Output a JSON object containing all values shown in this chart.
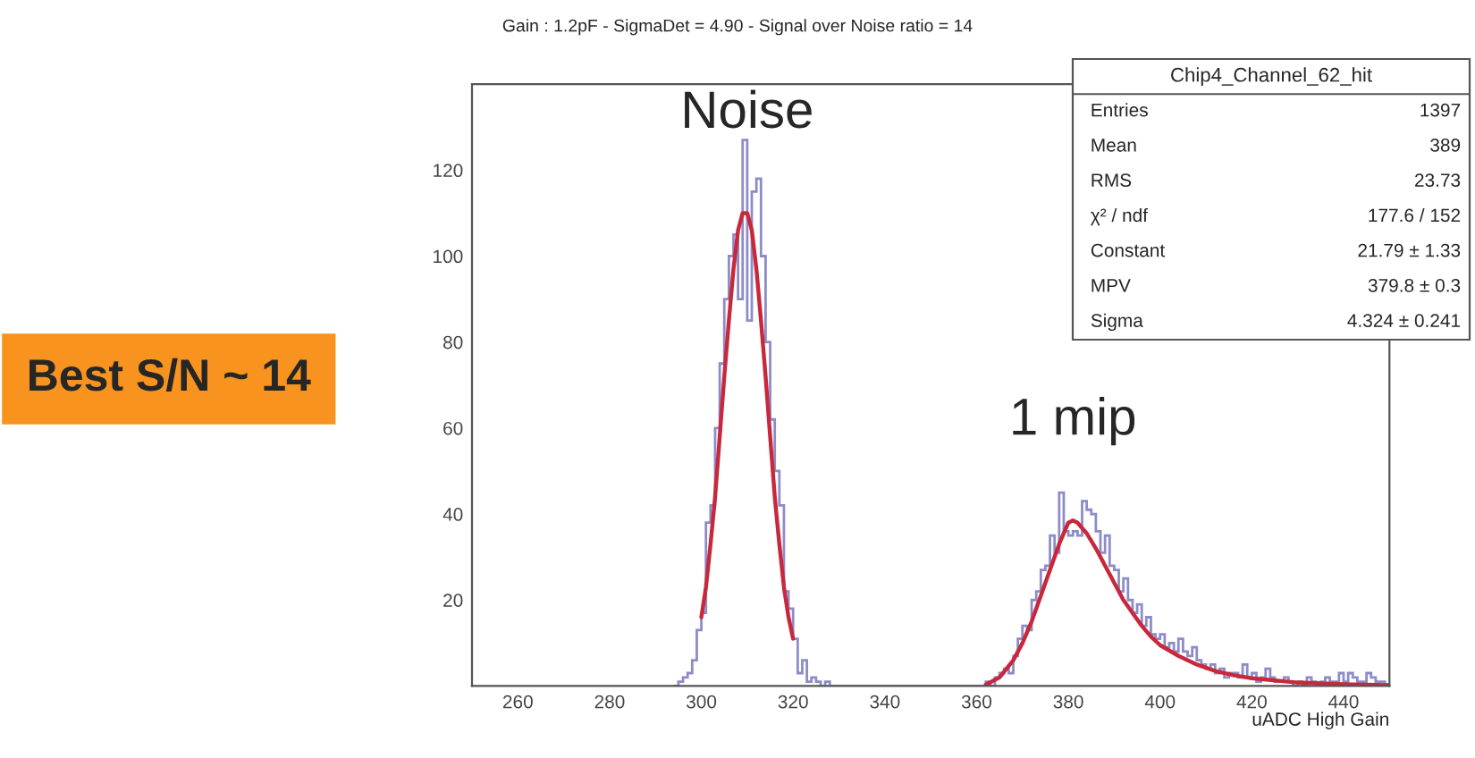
{
  "chart_data": {
    "type": "histogram",
    "title": "Gain : 1.2pF - SigmaDet = 4.90 - Signal over Noise ratio = 14",
    "xlabel": "uADC High Gain",
    "xlim": [
      250,
      450
    ],
    "xticks": [
      260,
      280,
      300,
      320,
      340,
      360,
      380,
      400,
      420,
      440
    ],
    "ylim": [
      0,
      140
    ],
    "yticks": [
      20,
      40,
      60,
      80,
      100,
      120
    ],
    "series": [
      {
        "color": "#8c8cc8",
        "bins": [
          294,
          295,
          296,
          297,
          298,
          299,
          300,
          301,
          302,
          303,
          304,
          305,
          306,
          307,
          308,
          309,
          310,
          311,
          312,
          313,
          314,
          315,
          316,
          317,
          318,
          319,
          320,
          321,
          322,
          323,
          324,
          325,
          326,
          327,
          328,
          329,
          330,
          331,
          332,
          333,
          334,
          335,
          336,
          337,
          338,
          339,
          340,
          341,
          342,
          343,
          344,
          345,
          346,
          347,
          348,
          349,
          350,
          351,
          352,
          353,
          354,
          355,
          356,
          357,
          358,
          359,
          360,
          361,
          362,
          363,
          364,
          365,
          366,
          367,
          368,
          369,
          370,
          371,
          372,
          373,
          374,
          375,
          376,
          377,
          378,
          379,
          380,
          381,
          382,
          383,
          384,
          385,
          386,
          387,
          388,
          389,
          390,
          391,
          392,
          393,
          394,
          395,
          396,
          397,
          398,
          399,
          400,
          401,
          402,
          403,
          404,
          405,
          406,
          407,
          408,
          409,
          410,
          411,
          412,
          413,
          414,
          415,
          416,
          417,
          418,
          419,
          420,
          421,
          422,
          423,
          424,
          425,
          426,
          427,
          428,
          429,
          430,
          431,
          432,
          433,
          434,
          435,
          436,
          437,
          438,
          439,
          440,
          441,
          442,
          443,
          444,
          445,
          446,
          447,
          448,
          449,
          450
        ],
        "values": [
          0,
          1,
          2,
          3,
          6,
          13,
          17,
          38,
          42,
          60,
          75,
          90,
          100,
          105,
          90,
          127,
          85,
          115,
          118,
          100,
          80,
          62,
          50,
          42,
          22,
          18,
          11,
          3,
          6,
          1,
          2,
          1,
          0,
          1,
          0,
          0,
          0,
          0,
          0,
          0,
          0,
          0,
          0,
          0,
          0,
          0,
          0,
          0,
          0,
          0,
          0,
          0,
          0,
          0,
          0,
          0,
          0,
          0,
          0,
          0,
          0,
          0,
          0,
          0,
          0,
          0,
          0,
          0,
          1,
          0,
          2,
          3,
          4,
          3,
          7,
          11,
          14,
          13,
          20,
          22,
          27,
          28,
          35,
          31,
          45,
          36,
          35,
          36,
          35,
          43,
          41,
          40,
          36,
          31,
          35,
          28,
          27,
          22,
          25,
          20,
          17,
          19,
          14,
          16,
          12,
          11,
          12,
          9,
          10,
          8,
          11,
          8,
          7,
          9,
          6,
          5,
          4,
          5,
          3,
          4,
          2,
          3,
          3,
          2,
          5,
          2,
          3,
          1,
          2,
          4,
          2,
          1,
          1,
          2,
          1,
          0,
          1,
          0,
          2,
          1,
          0,
          1,
          2,
          1,
          1,
          3,
          1,
          3,
          2,
          1,
          1,
          3,
          2,
          1,
          1,
          0
        ]
      },
      {
        "type": "line",
        "color": "#c8283c",
        "x": [
          300,
          301,
          302,
          303,
          304,
          305,
          306,
          307,
          308,
          309,
          310,
          311,
          312,
          313,
          314,
          315,
          316,
          317,
          318,
          319,
          320
        ],
        "values": [
          16,
          23,
          33,
          44,
          58,
          72,
          85,
          97,
          106,
          110,
          110,
          106,
          97,
          85,
          72,
          58,
          44,
          33,
          23,
          16,
          11
        ]
      },
      {
        "type": "line",
        "color": "#c8283c",
        "x": [
          362,
          365,
          368,
          370,
          372,
          374,
          376,
          378,
          380,
          381,
          382,
          384,
          386,
          388,
          390,
          392,
          394,
          396,
          398,
          400,
          404,
          408,
          412,
          416,
          420,
          430,
          440,
          450
        ],
        "values": [
          0.3,
          2,
          6,
          10,
          15,
          21,
          27,
          33,
          38,
          38.5,
          38,
          35.5,
          32,
          28,
          24,
          20,
          17,
          14,
          11.5,
          9.5,
          7,
          5,
          3.5,
          2.5,
          1.8,
          0.8,
          0.4,
          0.2
        ]
      }
    ],
    "annotations": [
      "Noise",
      "1 mip",
      "Best S/N ~ 14",
      "Chip4_Channel_62_hit",
      "Entries",
      "1397",
      "Mean",
      "389",
      "RMS",
      "23.73",
      "χ² / ndf",
      "177.6 / 152",
      "Constant",
      "21.79 ± 1.33",
      "MPV",
      "379.8 ± 0.3",
      "Sigma",
      "4.324 ± 0.241"
    ]
  }
}
